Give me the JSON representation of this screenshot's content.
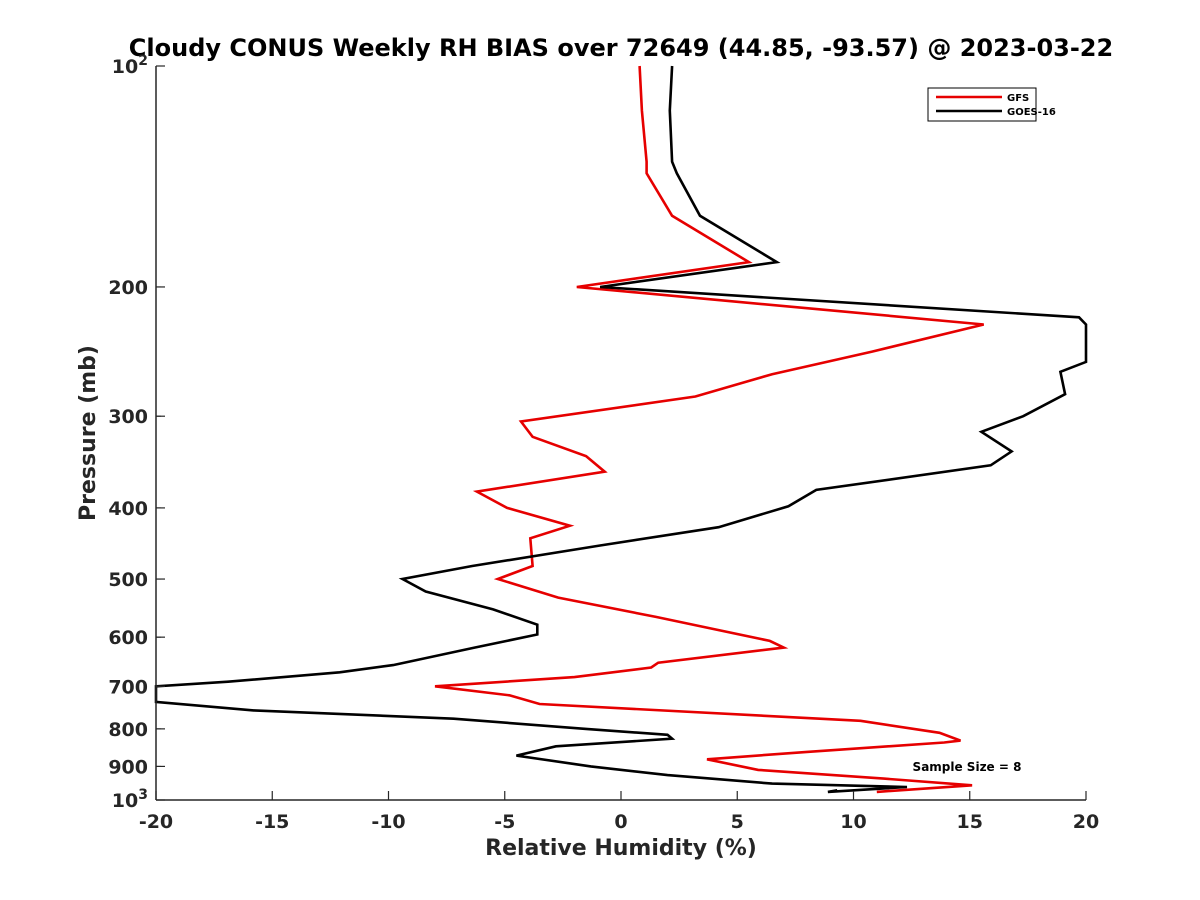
{
  "chart_data": {
    "type": "line",
    "title": "Cloudy CONUS Weekly RH BIAS over 72649 (44.85, -93.57) @ 2023-03-22",
    "xlabel": "Relative Humidity (%)",
    "ylabel": "Pressure (mb)",
    "xlim": [
      -20,
      20
    ],
    "ylim": [
      100,
      1000
    ],
    "y_scale": "log",
    "y_reversed": true,
    "x_ticks": [
      "-20",
      "-15",
      "-10",
      "-5",
      "0",
      "5",
      "10",
      "15",
      "20"
    ],
    "y_ticks": [
      {
        "value": 100,
        "base": "10",
        "exp": "2"
      },
      {
        "value": 200,
        "label": "200"
      },
      {
        "value": 300,
        "label": "300"
      },
      {
        "value": 400,
        "label": "400"
      },
      {
        "value": 500,
        "label": "500"
      },
      {
        "value": 600,
        "label": "600"
      },
      {
        "value": 700,
        "label": "700"
      },
      {
        "value": 800,
        "label": "800"
      },
      {
        "value": 900,
        "label": "900"
      },
      {
        "value": 1000,
        "base": "10",
        "exp": "3"
      }
    ],
    "legend_position": "top-right",
    "annotation": "Sample Size = 8",
    "series": [
      {
        "name": "GFS",
        "color": "#e60000",
        "points": [
          [
            0.8,
            100
          ],
          [
            0.9,
            115
          ],
          [
            1.1,
            135
          ],
          [
            1.1,
            140
          ],
          [
            2.2,
            160
          ],
          [
            5.5,
            185
          ],
          [
            -1.9,
            200
          ],
          [
            15.6,
            225
          ],
          [
            10.8,
            245
          ],
          [
            6.5,
            263
          ],
          [
            3.2,
            282
          ],
          [
            -4.3,
            305
          ],
          [
            -3.8,
            320
          ],
          [
            -1.5,
            340
          ],
          [
            -0.7,
            357
          ],
          [
            -6.2,
            380
          ],
          [
            -4.9,
            400
          ],
          [
            -2.2,
            423
          ],
          [
            -3.9,
            440
          ],
          [
            -3.8,
            480
          ],
          [
            -5.3,
            500
          ],
          [
            -2.7,
            530
          ],
          [
            1.5,
            563
          ],
          [
            4.0,
            585
          ],
          [
            6.4,
            607
          ],
          [
            7.0,
            620
          ],
          [
            1.6,
            650
          ],
          [
            1.3,
            660
          ],
          [
            -2.0,
            680
          ],
          [
            -8.0,
            700
          ],
          [
            -4.8,
            720
          ],
          [
            -3.5,
            740
          ],
          [
            10.3,
            780
          ],
          [
            13.7,
            810
          ],
          [
            14.6,
            830
          ],
          [
            13.9,
            835
          ],
          [
            8.0,
            860
          ],
          [
            3.7,
            880
          ],
          [
            5.9,
            910
          ],
          [
            11.3,
            935
          ],
          [
            15.1,
            955
          ],
          [
            11.0,
            975
          ]
        ]
      },
      {
        "name": "GOES-16",
        "color": "#000000",
        "points": [
          [
            2.2,
            100
          ],
          [
            2.1,
            115
          ],
          [
            2.2,
            135
          ],
          [
            2.4,
            140
          ],
          [
            3.4,
            160
          ],
          [
            6.7,
            185
          ],
          [
            -0.9,
            200
          ],
          [
            19.7,
            220
          ],
          [
            20.0,
            225
          ],
          [
            20.0,
            253
          ],
          [
            18.9,
            261
          ],
          [
            19.1,
            280
          ],
          [
            17.3,
            300
          ],
          [
            15.5,
            315
          ],
          [
            16.8,
            335
          ],
          [
            15.9,
            350
          ],
          [
            8.4,
            378
          ],
          [
            7.2,
            398
          ],
          [
            4.2,
            425
          ],
          [
            -0.9,
            450
          ],
          [
            -6.4,
            480
          ],
          [
            -9.4,
            500
          ],
          [
            -8.4,
            520
          ],
          [
            -5.5,
            550
          ],
          [
            -3.6,
            577
          ],
          [
            -3.6,
            595
          ],
          [
            -6.3,
            620
          ],
          [
            -9.8,
            655
          ],
          [
            -12.1,
            670
          ],
          [
            -16.9,
            690
          ],
          [
            -20.0,
            700
          ],
          [
            -20.0,
            735
          ],
          [
            -15.8,
            755
          ],
          [
            -7.2,
            775
          ],
          [
            -1.5,
            800
          ],
          [
            2.0,
            815
          ],
          [
            2.2,
            825
          ],
          [
            -2.8,
            845
          ],
          [
            -4.5,
            870
          ],
          [
            -1.3,
            900
          ],
          [
            2.0,
            925
          ],
          [
            6.5,
            950
          ],
          [
            12.3,
            960
          ],
          [
            8.9,
            975
          ],
          [
            9.3,
            970
          ]
        ]
      }
    ]
  }
}
